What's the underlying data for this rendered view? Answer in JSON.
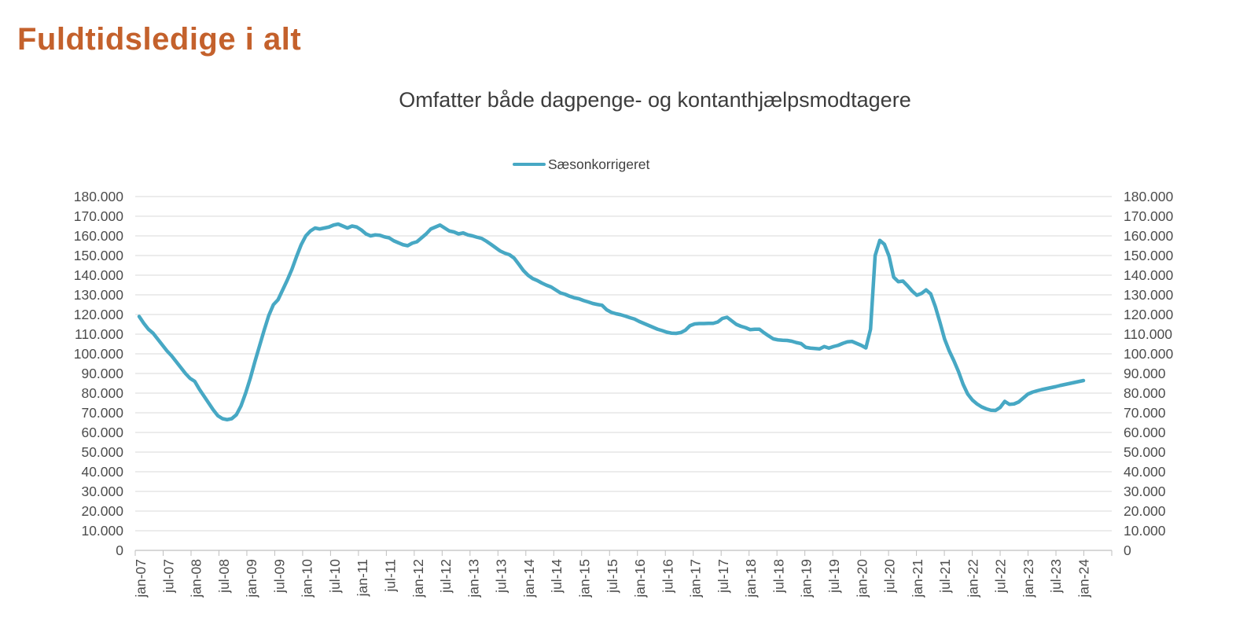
{
  "page": {
    "title": "Fuldtidsledige i alt"
  },
  "chart": {
    "subtitle": "Omfatter både dagpenge- og kontanthjælpsmodtagere",
    "legend": {
      "label": "Sæsonkorrigeret"
    }
  },
  "colors": {
    "title": "#C4612C",
    "series": "#47A8C4",
    "subtitle_text": "#3C3C3C",
    "axis_text": "#4C4C4C",
    "gridline": "#D9D9D9",
    "axis_line": "#BFBFBF"
  },
  "chart_data": {
    "type": "line",
    "title": "Omfatter både dagpenge- og kontanthjælpsmodtagere",
    "grid": "horizontal",
    "legend_position": "top-center",
    "dual_y_axis": true,
    "ylim": [
      0,
      180000
    ],
    "y_tick_step": 10000,
    "y_tick_labels": [
      "0",
      "10.000",
      "20.000",
      "30.000",
      "40.000",
      "50.000",
      "60.000",
      "70.000",
      "80.000",
      "90.000",
      "100.000",
      "110.000",
      "120.000",
      "130.000",
      "140.000",
      "150.000",
      "160.000",
      "170.000",
      "180.000"
    ],
    "x_tick_labels": [
      "jan-07",
      "jul-07",
      "jan-08",
      "jul-08",
      "jan-09",
      "jul-09",
      "jan-10",
      "jul-10",
      "jan-11",
      "jul-11",
      "jan-12",
      "jul-12",
      "jan-13",
      "jul-13",
      "jan-14",
      "jul-14",
      "jan-15",
      "jul-15",
      "jan-16",
      "jul-16",
      "jan-17",
      "jul-17",
      "jan-18",
      "jul-18",
      "jan-19",
      "jul-19",
      "jan-20",
      "jul-20",
      "jan-21",
      "jul-21",
      "jan-22",
      "jul-22",
      "jan-23",
      "jul-23",
      "jan-24"
    ],
    "series": [
      {
        "name": "Sæsonkorrigeret",
        "start": "jan-07",
        "end": "jan-24",
        "frequency": "monthly",
        "values": [
          119000,
          115500,
          112500,
          110500,
          107500,
          104500,
          101500,
          99000,
          96000,
          93000,
          90000,
          87500,
          86000,
          82000,
          78500,
          75000,
          71500,
          68500,
          67000,
          66500,
          67000,
          69000,
          73500,
          80000,
          87500,
          96000,
          104000,
          112000,
          119500,
          125000,
          127500,
          132500,
          137500,
          143000,
          149500,
          155500,
          160000,
          162500,
          164000,
          163500,
          164000,
          164500,
          165500,
          166000,
          165000,
          164000,
          165000,
          164500,
          163000,
          161000,
          160000,
          160500,
          160300,
          159500,
          159000,
          157500,
          156500,
          155500,
          155000,
          156300,
          157000,
          159000,
          161000,
          163500,
          164500,
          165500,
          164000,
          162500,
          162000,
          161000,
          161500,
          160500,
          160000,
          159300,
          158700,
          157300,
          155700,
          154000,
          152300,
          151200,
          150400,
          148700,
          145600,
          142400,
          140000,
          138300,
          137300,
          136000,
          134900,
          134000,
          132500,
          131000,
          130300,
          129300,
          128500,
          128000,
          127100,
          126400,
          125600,
          125100,
          124700,
          122400,
          121100,
          120400,
          119900,
          119200,
          118400,
          117700,
          116500,
          115500,
          114500,
          113500,
          112500,
          111800,
          111000,
          110500,
          110400,
          110800,
          112000,
          114300,
          115200,
          115400,
          115400,
          115500,
          115500,
          116200,
          118000,
          118600,
          116800,
          115000,
          114000,
          113300,
          112300,
          112500,
          112500,
          110700,
          109100,
          107600,
          107100,
          106900,
          106800,
          106400,
          105700,
          105200,
          103300,
          102900,
          102700,
          102500,
          103700,
          102900,
          103700,
          104300,
          105300,
          106100,
          106300,
          105300,
          104300,
          103000,
          112500,
          150000,
          157700,
          155700,
          149700,
          139000,
          136700,
          137000,
          134600,
          131900,
          129800,
          130700,
          132500,
          130500,
          124000,
          116000,
          107500,
          101500,
          96500,
          91000,
          84500,
          79500,
          76500,
          74500,
          73000,
          72000,
          71300,
          71200,
          72700,
          75800,
          74300,
          74500,
          75500,
          77500,
          79500,
          80500,
          81200,
          81800,
          82300,
          82800,
          83300,
          83900,
          84400,
          84900,
          85400,
          85900,
          86400
        ]
      }
    ]
  }
}
